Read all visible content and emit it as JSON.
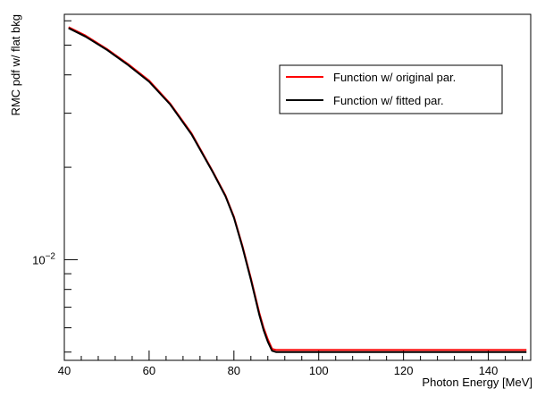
{
  "chart_data": {
    "type": "line",
    "title": "",
    "xlabel": "Photon Energy [MeV]",
    "ylabel": "RMC pdf w/ flat bkg",
    "xlim": [
      40,
      150
    ],
    "ylim": [
      0.0047,
      0.063
    ],
    "yscale": "log",
    "xticks": [
      40,
      60,
      80,
      100,
      120,
      140
    ],
    "xtick_labels": [
      "40",
      "60",
      "80",
      "100",
      "120",
      "140"
    ],
    "yticks": [
      0.01
    ],
    "ytick_label_base": "10",
    "ytick_label_exp": "−2",
    "grid": false,
    "legend_position": "top-right",
    "series": [
      {
        "name": "Function w/ original par.",
        "color": "#ff0000",
        "x": [
          41,
          45,
          50,
          55,
          60,
          65,
          70,
          75,
          78,
          80,
          82,
          84,
          86,
          87,
          88,
          89,
          90,
          92,
          100,
          120,
          149
        ],
        "y": [
          0.0572,
          0.0537,
          0.0486,
          0.0434,
          0.0383,
          0.0322,
          0.0258,
          0.0194,
          0.0162,
          0.0138,
          0.0111,
          0.0087,
          0.0067,
          0.006,
          0.0055,
          0.00512,
          0.00508,
          0.00508,
          0.00508,
          0.00508,
          0.00508
        ]
      },
      {
        "name": "Function w/ fitted par.",
        "color": "#000000",
        "x": [
          41,
          45,
          50,
          55,
          60,
          65,
          70,
          75,
          78,
          80,
          82,
          84,
          86,
          87,
          88,
          89,
          90,
          92,
          100,
          120,
          149
        ],
        "y": [
          0.0568,
          0.0533,
          0.0483,
          0.0431,
          0.038,
          0.032,
          0.0256,
          0.0193,
          0.0161,
          0.0137,
          0.011,
          0.0086,
          0.0066,
          0.0059,
          0.0054,
          0.00505,
          0.005,
          0.005,
          0.005,
          0.005,
          0.005
        ]
      }
    ]
  }
}
